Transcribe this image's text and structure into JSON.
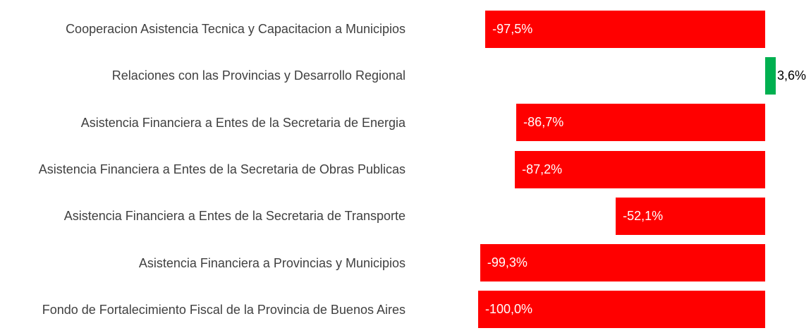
{
  "chart_data": {
    "type": "bar",
    "orientation": "horizontal",
    "categories": [
      "Cooperacion Asistencia Tecnica y Capacitacion a Municipios",
      "Relaciones con las Provincias y Desarrollo Regional",
      "Asistencia Financiera a Entes de la Secretaria de Energia",
      "Asistencia Financiera a Entes de la Secretaria de Obras Publicas",
      "Asistencia Financiera a Entes de la Secretaria de Transporte",
      "Asistencia Financiera a Provincias y Municipios",
      "Fondo de Fortalecimiento Fiscal de la Provincia de Buenos Aires"
    ],
    "values": [
      -97.5,
      3.6,
      -86.7,
      -87.2,
      -52.1,
      -99.3,
      -100.0
    ],
    "value_labels": [
      "-97,5%",
      "3,6%",
      "-86,7%",
      "-87,2%",
      "-52,1%",
      "-99,3%",
      "-100,0%"
    ],
    "colors": [
      "#ff0000",
      "#00b050",
      "#ff0000",
      "#ff0000",
      "#ff0000",
      "#ff0000",
      "#ff0000"
    ]
  }
}
